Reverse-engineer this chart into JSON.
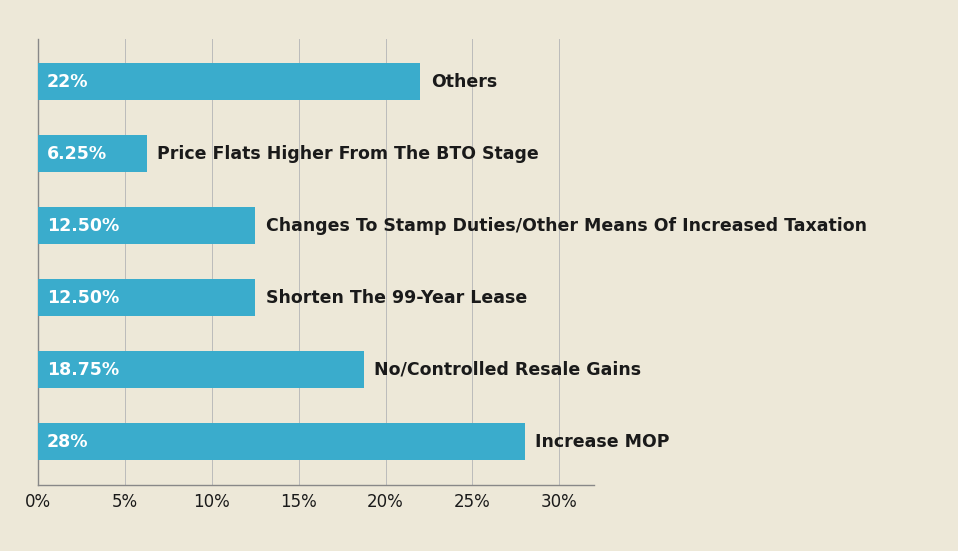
{
  "categories": [
    "Increase MOP",
    "No/Controlled Resale Gains",
    "Shorten The 99-Year Lease",
    "Changes To Stamp Duties/Other Means Of Increased Taxation",
    "Price Flats Higher From The BTO Stage",
    "Others"
  ],
  "values": [
    28,
    18.75,
    12.5,
    12.5,
    6.25,
    22
  ],
  "labels": [
    "28%",
    "18.75%",
    "12.50%",
    "12.50%",
    "6.25%",
    "22%"
  ],
  "bar_color": "#3aaccc",
  "background_color": "#ede8d8",
  "text_color": "#1a1a1a",
  "bar_label_color": "#ffffff",
  "category_label_color": "#1a1a1a",
  "xlim": [
    0,
    32
  ],
  "xticks": [
    0,
    5,
    10,
    15,
    20,
    25,
    30
  ],
  "xtick_labels": [
    "0%",
    "5%",
    "10%",
    "15%",
    "20%",
    "25%",
    "30%"
  ],
  "bar_height": 0.52,
  "label_fontsize": 12.5,
  "category_fontsize": 12.5,
  "tick_fontsize": 12
}
